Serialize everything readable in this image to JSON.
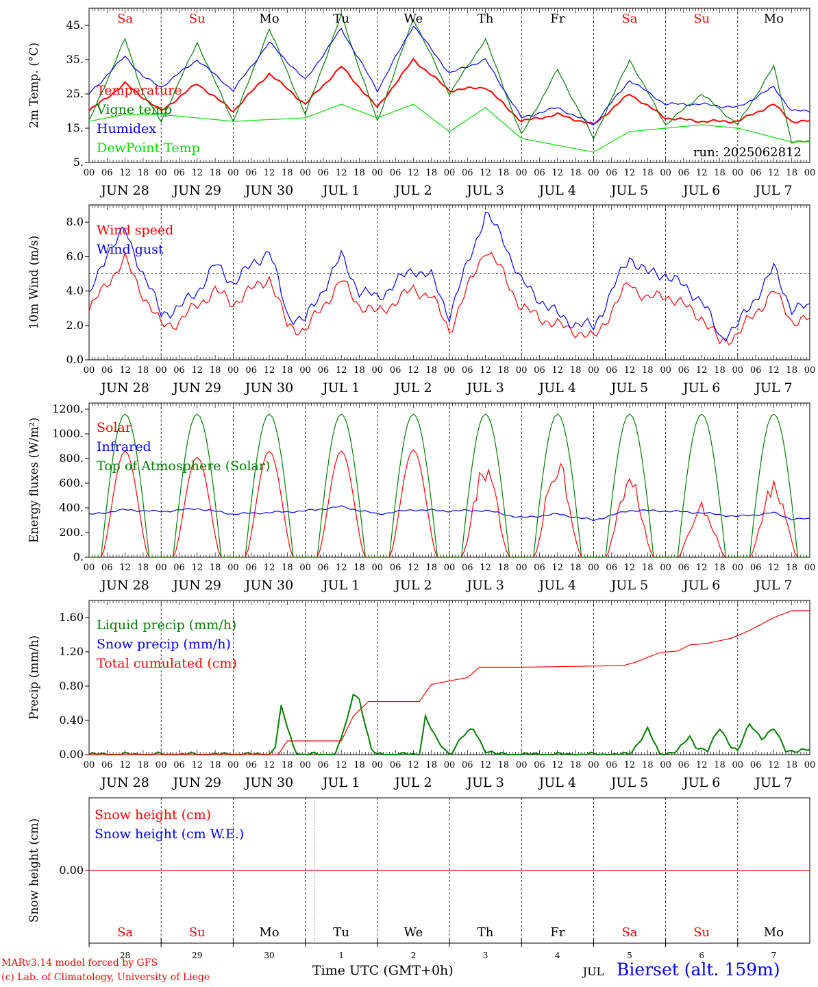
{
  "colors": {
    "red": "#ff0000",
    "green": "#008000",
    "lightgreen": "#00e000",
    "blue": "#0000ff",
    "axis": "#000000"
  },
  "run_label": "run: 2025062812",
  "day_names": [
    "Sa",
    "Su",
    "Mo",
    "Tu",
    "We",
    "Th",
    "Fr",
    "Sa",
    "Su",
    "Mo"
  ],
  "day_name_colors": [
    "#ff0000",
    "#ff0000",
    "#000000",
    "#000000",
    "#000000",
    "#000000",
    "#000000",
    "#ff0000",
    "#ff0000",
    "#000000"
  ],
  "date_labels": [
    "JUN 28",
    "JUN 29",
    "JUN 30",
    "JUL  1",
    "JUL  2",
    "JUL  3",
    "JUL  4",
    "JUL  5",
    "JUL  6",
    "JUL  7"
  ],
  "hour_ticks": [
    "00",
    "06",
    "12",
    "18"
  ],
  "hour_ticks_last": "00",
  "bottom_days": [
    "28",
    "29",
    "30",
    "1",
    "2",
    "3",
    "4",
    "5",
    "6",
    "7"
  ],
  "bottom_month": "JUL",
  "footer": {
    "credit1": "MARv3.14 model forced by GFS",
    "credit2": "(c) Lab. of Climatology, University of Liege",
    "xlabel": "Time UTC (GMT+0h)",
    "station": "Bierset (alt. 159m)"
  },
  "chart_data": [
    {
      "type": "line",
      "ylabel": "2m Temp. (°C)",
      "ylim": [
        5,
        50
      ],
      "yticks": [
        "5.",
        "15.",
        "25.",
        "35.",
        "45."
      ],
      "hline": null,
      "series": [
        {
          "name": "Temperature",
          "color": "#ff0000",
          "x_hours": [
            0,
            12,
            18,
            24,
            36,
            48,
            60,
            72,
            84,
            96,
            108,
            120,
            132,
            144,
            156,
            168,
            180,
            192,
            204,
            216,
            228,
            234
          ],
          "values": [
            20,
            28,
            24,
            20,
            28,
            20,
            31,
            22,
            33,
            21,
            35,
            26,
            27,
            17,
            19,
            16,
            25,
            18,
            17,
            17,
            22,
            17
          ]
        },
        {
          "name": "Vigne temp",
          "color": "#008000",
          "x_hours": [
            0,
            12,
            18,
            24,
            36,
            48,
            60,
            72,
            84,
            96,
            108,
            120,
            132,
            144,
            156,
            168,
            180,
            192,
            204,
            216,
            228,
            234
          ],
          "values": [
            17,
            41,
            25,
            17,
            40,
            17,
            44,
            19,
            48,
            17,
            47,
            25,
            41,
            13,
            32,
            12,
            35,
            16,
            25,
            16,
            33,
            11
          ]
        },
        {
          "name": "Humidex",
          "color": "#0000ff",
          "x_hours": [
            0,
            12,
            18,
            24,
            36,
            48,
            60,
            72,
            84,
            96,
            108,
            120,
            132,
            144,
            156,
            168,
            180,
            192,
            204,
            216,
            228,
            234
          ],
          "values": [
            25,
            36,
            30,
            27,
            35,
            26,
            40,
            29,
            44,
            26,
            45,
            31,
            35,
            18,
            21,
            16,
            29,
            22,
            22,
            21,
            27,
            20
          ]
        },
        {
          "name": "DewPoint Temp",
          "color": "#00e000",
          "x_hours": [
            0,
            12,
            24,
            48,
            72,
            84,
            96,
            108,
            120,
            132,
            144,
            168,
            180,
            192,
            204,
            216,
            234
          ],
          "values": [
            17,
            19,
            19,
            17,
            18,
            22,
            18,
            22,
            14,
            21,
            12,
            8,
            14,
            15,
            16,
            15,
            11
          ]
        }
      ]
    },
    {
      "type": "line",
      "ylabel": "10m Wind (m/s)",
      "ylim": [
        0,
        9
      ],
      "yticks": [
        "0.0",
        "2.0",
        "4.0",
        "6.0",
        "8.0"
      ],
      "hline": 5,
      "series": [
        {
          "name": "Wind speed",
          "color": "#ff0000",
          "x_hours": [
            0,
            6,
            12,
            18,
            24,
            30,
            36,
            42,
            48,
            60,
            66,
            72,
            84,
            90,
            96,
            108,
            114,
            120,
            132,
            138,
            144,
            156,
            162,
            168,
            180,
            186,
            192,
            204,
            210,
            216,
            228,
            234
          ],
          "values": [
            2.8,
            4.5,
            5.8,
            3.8,
            2.0,
            2.2,
            3.2,
            4.0,
            3.3,
            4.8,
            2.0,
            1.7,
            4.6,
            3.2,
            2.7,
            4.1,
            3.7,
            1.7,
            6.5,
            5.0,
            3.0,
            2.0,
            1.7,
            1.2,
            4.5,
            3.5,
            3.8,
            2.5,
            1.0,
            1.5,
            4.0,
            2.3
          ]
        },
        {
          "name": "Wind gust",
          "color": "#0000ff",
          "x_hours": [
            0,
            6,
            12,
            18,
            24,
            30,
            36,
            42,
            48,
            60,
            66,
            72,
            84,
            90,
            96,
            108,
            114,
            120,
            132,
            138,
            144,
            156,
            162,
            168,
            180,
            186,
            192,
            204,
            210,
            216,
            228,
            234
          ],
          "values": [
            3.6,
            6.3,
            7.5,
            5.0,
            2.7,
            3.0,
            4.0,
            5.5,
            4.5,
            6.4,
            2.6,
            2.3,
            6.0,
            4.0,
            3.6,
            5.3,
            4.8,
            2.6,
            8.5,
            7.0,
            4.5,
            2.6,
            2.1,
            1.9,
            6.0,
            5.0,
            5.0,
            3.5,
            1.3,
            2.0,
            5.3,
            3.0
          ]
        }
      ]
    },
    {
      "type": "line",
      "ylabel": "Energy fluxes (W/m²)",
      "ylim": [
        0,
        1250
      ],
      "yticks": [
        "0.",
        "200.",
        "400.",
        "600.",
        "800.",
        "1000.",
        "1200."
      ],
      "hline": null,
      "series": [
        {
          "name": "Solar",
          "color": "#ff0000",
          "day_peaks": [
            860,
            810,
            860,
            860,
            870,
            820,
            840,
            700,
            450,
            650
          ]
        },
        {
          "name": "Infrared",
          "color": "#0000ff",
          "x_hours": [
            0,
            12,
            24,
            36,
            48,
            72,
            84,
            96,
            108,
            120,
            132,
            144,
            156,
            168,
            180,
            192,
            204,
            216,
            228,
            234
          ],
          "values": [
            345,
            385,
            370,
            395,
            350,
            375,
            410,
            350,
            385,
            375,
            380,
            320,
            350,
            300,
            380,
            375,
            360,
            330,
            360,
            310
          ]
        },
        {
          "name": "Top of Atmosphere (Solar)",
          "color": "#008000",
          "day_peak": 1160
        }
      ]
    },
    {
      "type": "line",
      "ylabel": "Precip (mm/h)",
      "ylim": [
        0,
        1.8
      ],
      "yticks": [
        "0.00",
        "0.40",
        "0.80",
        "1.20",
        "1.60"
      ],
      "hline": null,
      "series": [
        {
          "name": "Liquid precip (mm/h)",
          "color": "#008000",
          "x_hours": [
            0,
            60,
            62,
            64,
            68,
            70,
            72,
            82,
            86,
            88,
            90,
            94,
            96,
            110,
            112,
            116,
            120,
            124,
            128,
            132,
            136,
            168,
            180,
            184,
            186,
            190,
            196,
            200,
            202,
            206,
            210,
            214,
            216,
            220,
            224,
            228,
            232
          ],
          "values": [
            0,
            0,
            0.1,
            0.55,
            0.1,
            0,
            0,
            0,
            0.4,
            0.72,
            0.65,
            0.05,
            0,
            0,
            0.45,
            0.15,
            0,
            0.2,
            0.3,
            0.05,
            0,
            0,
            0,
            0.2,
            0.3,
            0,
            0.05,
            0.2,
            0.1,
            0.05,
            0.3,
            0.1,
            0.05,
            0.35,
            0.2,
            0.3,
            0.05
          ]
        },
        {
          "name": "Snow precip (mm/h)",
          "color": "#0000ff",
          "values": []
        },
        {
          "name": "Total cumulated (cm)",
          "color": "#ff0000",
          "x_hours": [
            0,
            63,
            66,
            84,
            88,
            93,
            96,
            110,
            114,
            120,
            126,
            130,
            144,
            178,
            182,
            190,
            196,
            200,
            206,
            214,
            220,
            228,
            234
          ],
          "values": [
            0,
            0,
            0.16,
            0.16,
            0.45,
            0.62,
            0.62,
            0.62,
            0.82,
            0.86,
            0.9,
            1.02,
            1.02,
            1.04,
            1.08,
            1.19,
            1.21,
            1.28,
            1.3,
            1.36,
            1.45,
            1.6,
            1.68
          ]
        }
      ]
    },
    {
      "type": "line",
      "ylabel": "Snow height (cm)",
      "ylim": [
        -1,
        1
      ],
      "yticks": [
        "0.00"
      ],
      "hline": null,
      "series": [
        {
          "name": "Snow height (cm)",
          "color": "#ff0000",
          "x_hours": [
            0,
            240
          ],
          "values": [
            0,
            0
          ]
        },
        {
          "name": "Snow height (cm W.E.)",
          "color": "#0000ff",
          "values": []
        }
      ]
    }
  ]
}
